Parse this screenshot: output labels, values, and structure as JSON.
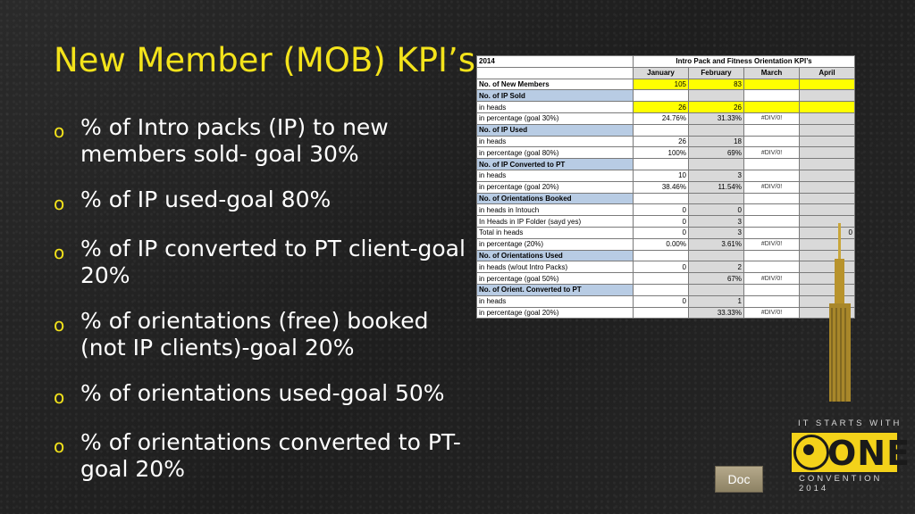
{
  "slide": {
    "title": "New Member (MOB) KPI’s",
    "bullets": [
      "% of Intro packs (IP)  to new members sold- goal 30%",
      "% of IP used-goal 80%",
      "% of IP converted to PT client-goal 20%",
      "% of orientations (free) booked (not IP clients)-goal 20%",
      "% of orientations used-goal 50%",
      "% of orientations converted to PT-goal 20%"
    ],
    "bullet_marker": "o"
  },
  "sheet": {
    "year": "2014",
    "title": "Intro Pack and Fitness Orientation KPI’s",
    "months": [
      "January",
      "February",
      "March",
      "April"
    ],
    "rows": [
      {
        "label": "No. of New Members",
        "type": "bold",
        "values": [
          "105",
          "83",
          "",
          ""
        ]
      },
      {
        "label": "No. of IP Sold",
        "type": "section",
        "values": [
          "",
          "",
          "",
          ""
        ]
      },
      {
        "label": "in heads",
        "type": "yellow",
        "values": [
          "26",
          "26",
          "",
          ""
        ]
      },
      {
        "label": "in percentage (goal 30%)",
        "type": "normal",
        "values": [
          "24.76%",
          "31.33%",
          "#DIV/0!",
          ""
        ]
      },
      {
        "label": "No. of IP Used",
        "type": "section",
        "values": [
          "",
          "",
          "",
          ""
        ]
      },
      {
        "label": "in heads",
        "type": "normal",
        "values": [
          "26",
          "18",
          "",
          ""
        ]
      },
      {
        "label": "in percentage (goal 80%)",
        "type": "normal",
        "values": [
          "100%",
          "69%",
          "#DIV/0!",
          ""
        ]
      },
      {
        "label": "No. of IP Converted to PT",
        "type": "section",
        "values": [
          "",
          "",
          "",
          ""
        ]
      },
      {
        "label": "in heads",
        "type": "normal",
        "values": [
          "10",
          "3",
          "",
          ""
        ]
      },
      {
        "label": "in percentage (goal 20%)",
        "type": "normal",
        "values": [
          "38.46%",
          "11.54%",
          "#DIV/0!",
          ""
        ]
      },
      {
        "label": "No. of Orientations Booked",
        "type": "section",
        "values": [
          "",
          "",
          "",
          ""
        ]
      },
      {
        "label": "in heads in Intouch",
        "type": "normal",
        "values": [
          "0",
          "0",
          "",
          ""
        ]
      },
      {
        "label": "In Heads in IP Folder (sayd yes)",
        "type": "normal",
        "values": [
          "0",
          "3",
          "",
          ""
        ]
      },
      {
        "label": "Total in heads",
        "type": "normal",
        "values": [
          "0",
          "3",
          "",
          "0"
        ]
      },
      {
        "label": "in percentage (20%)",
        "type": "normal",
        "values": [
          "0.00%",
          "3.61%",
          "#DIV/0!",
          ""
        ]
      },
      {
        "label": "No. of Orientations Used",
        "type": "section",
        "values": [
          "",
          "",
          "",
          ""
        ]
      },
      {
        "label": "in heads (w/out Intro Packs)",
        "type": "normal",
        "values": [
          "0",
          "2",
          "",
          ""
        ]
      },
      {
        "label": "in percentage (goal 50%)",
        "type": "normal",
        "values": [
          "",
          "67%",
          "#DIV/0!",
          ""
        ]
      },
      {
        "label": "No. of Orient. Converted to PT",
        "type": "section",
        "values": [
          "",
          "",
          "",
          ""
        ]
      },
      {
        "label": "in heads",
        "type": "normal",
        "values": [
          "0",
          "1",
          "",
          ""
        ]
      },
      {
        "label": "in percentage  (goal 20%)",
        "type": "normal",
        "values": [
          "",
          "33.33%",
          "#DIV/0!",
          ""
        ]
      }
    ]
  },
  "doc_button": "Doc",
  "logo": {
    "tagline_top": "IT STARTS WITH",
    "word": "ONE",
    "tagline_bottom": "CONVENTION 2014"
  },
  "colors": {
    "accent": "#f3e31b",
    "background": "#232323",
    "section": "#b8cce4",
    "highlight": "#ffff00"
  }
}
